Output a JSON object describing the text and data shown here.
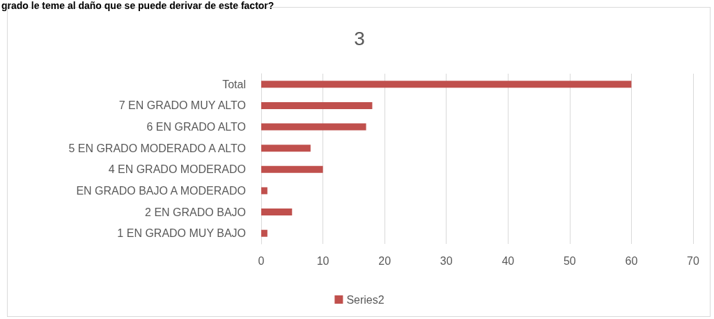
{
  "chart_data": {
    "type": "bar",
    "orientation": "horizontal",
    "title": "3",
    "annotations": [
      "grado le teme al daño que se puede derivar de este factor?"
    ],
    "categories": [
      "Total",
      "7 EN GRADO MUY ALTO",
      "6 EN GRADO ALTO",
      "5 EN GRADO MODERADO A ALTO",
      "4 EN GRADO MODERADO",
      "EN GRADO BAJO A MODERADO",
      "2 EN GRADO BAJO",
      "1 EN GRADO MUY BAJO"
    ],
    "series": [
      {
        "name": "Series2",
        "color": "#c0504d",
        "values": [
          60,
          18,
          17,
          8,
          10,
          1,
          5,
          1
        ]
      }
    ],
    "xlim": [
      0,
      70
    ],
    "xticks": [
      0,
      10,
      20,
      30,
      40,
      50,
      60,
      70
    ],
    "grid": "x",
    "legend": "bottom"
  }
}
